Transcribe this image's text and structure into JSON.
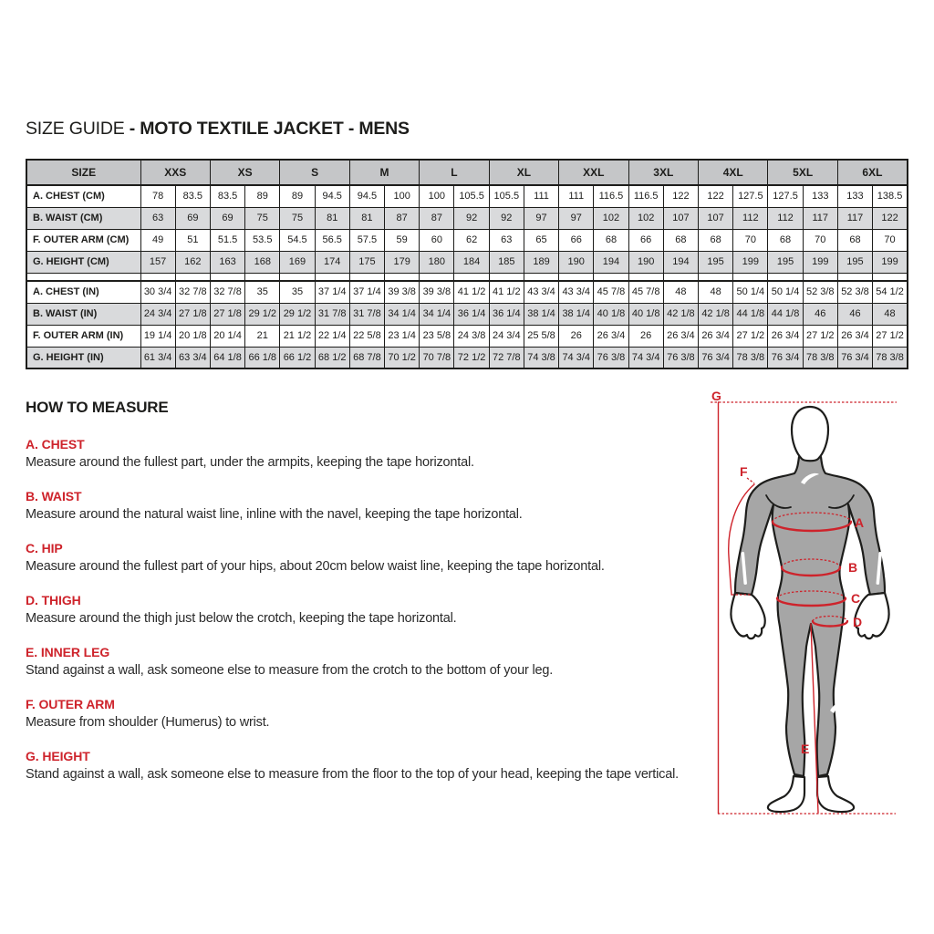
{
  "title": {
    "normal": "SIZE GUIDE ",
    "bold": "- MOTO TEXTILE JACKET - MENS"
  },
  "table": {
    "header_label": "SIZE",
    "sizes": [
      "XXS",
      "XS",
      "S",
      "M",
      "L",
      "XL",
      "XXL",
      "3XL",
      "4XL",
      "5XL",
      "6XL"
    ],
    "cm_rows": [
      {
        "label": "A. CHEST (CM)",
        "values": [
          "78",
          "83.5",
          "83.5",
          "89",
          "89",
          "94.5",
          "94.5",
          "100",
          "100",
          "105.5",
          "105.5",
          "111",
          "111",
          "116.5",
          "116.5",
          "122",
          "122",
          "127.5",
          "127.5",
          "133",
          "133",
          "138.5"
        ]
      },
      {
        "label": "B. WAIST (CM)",
        "values": [
          "63",
          "69",
          "69",
          "75",
          "75",
          "81",
          "81",
          "87",
          "87",
          "92",
          "92",
          "97",
          "97",
          "102",
          "102",
          "107",
          "107",
          "112",
          "112",
          "117",
          "117",
          "122"
        ]
      },
      {
        "label": "F. OUTER ARM (CM)",
        "values": [
          "49",
          "51",
          "51.5",
          "53.5",
          "54.5",
          "56.5",
          "57.5",
          "59",
          "60",
          "62",
          "63",
          "65",
          "66",
          "68",
          "66",
          "68",
          "68",
          "70",
          "68",
          "70",
          "68",
          "70"
        ]
      },
      {
        "label": "G. HEIGHT (CM)",
        "values": [
          "157",
          "162",
          "163",
          "168",
          "169",
          "174",
          "175",
          "179",
          "180",
          "184",
          "185",
          "189",
          "190",
          "194",
          "190",
          "194",
          "195",
          "199",
          "195",
          "199",
          "195",
          "199"
        ]
      }
    ],
    "in_rows": [
      {
        "label": "A. CHEST (IN)",
        "values": [
          "30 3/4",
          "32 7/8",
          "32 7/8",
          "35",
          "35",
          "37 1/4",
          "37 1/4",
          "39 3/8",
          "39 3/8",
          "41 1/2",
          "41 1/2",
          "43 3/4",
          "43 3/4",
          "45 7/8",
          "45 7/8",
          "48",
          "48",
          "50 1/4",
          "50 1/4",
          "52 3/8",
          "52 3/8",
          "54 1/2"
        ]
      },
      {
        "label": "B. WAIST (IN)",
        "values": [
          "24 3/4",
          "27 1/8",
          "27 1/8",
          "29 1/2",
          "29 1/2",
          "31 7/8",
          "31 7/8",
          "34 1/4",
          "34 1/4",
          "36 1/4",
          "36 1/4",
          "38 1/4",
          "38 1/4",
          "40 1/8",
          "40 1/8",
          "42 1/8",
          "42 1/8",
          "44 1/8",
          "44 1/8",
          "46",
          "46",
          "48"
        ]
      },
      {
        "label": "F. OUTER ARM (IN)",
        "values": [
          "19 1/4",
          "20 1/8",
          "20 1/4",
          "21",
          "21 1/2",
          "22 1/4",
          "22 5/8",
          "23 1/4",
          "23 5/8",
          "24 3/8",
          "24 3/4",
          "25 5/8",
          "26",
          "26 3/4",
          "26",
          "26 3/4",
          "26 3/4",
          "27 1/2",
          "26 3/4",
          "27 1/2",
          "26 3/4",
          "27 1/2"
        ]
      },
      {
        "label": "G. HEIGHT (IN)",
        "values": [
          "61 3/4",
          "63 3/4",
          "64 1/8",
          "66 1/8",
          "66 1/2",
          "68 1/2",
          "68 7/8",
          "70 1/2",
          "70 7/8",
          "72 1/2",
          "72 7/8",
          "74 3/8",
          "74 3/4",
          "76 3/8",
          "74 3/4",
          "76 3/8",
          "76 3/4",
          "78 3/8",
          "76 3/4",
          "78 3/8",
          "76 3/4",
          "78 3/8"
        ]
      }
    ]
  },
  "how_to_measure": {
    "heading": "HOW TO MEASURE",
    "items": [
      {
        "label": "A. CHEST",
        "text": "Measure around the fullest part, under the armpits, keeping the tape horizontal."
      },
      {
        "label": "B. WAIST",
        "text": "Measure around the natural waist line, inline with the navel, keeping the tape horizontal."
      },
      {
        "label": "C. HIP",
        "text": "Measure around the fullest part of your hips, about 20cm below waist line, keeping the tape horizontal."
      },
      {
        "label": "D. THIGH",
        "text": "Measure around the thigh just below the crotch, keeping the tape horizontal."
      },
      {
        "label": "E. INNER LEG",
        "text": "Stand against a wall, ask someone else to measure from the crotch to the bottom of your leg."
      },
      {
        "label": "F. OUTER ARM",
        "text": "Measure from shoulder (Humerus) to wrist."
      },
      {
        "label": "G. HEIGHT",
        "text": "Stand against a wall, ask someone else to measure from the floor to the top of your head, keeping the tape vertical."
      }
    ]
  },
  "figure": {
    "labels": [
      "A",
      "B",
      "C",
      "D",
      "E",
      "F",
      "G"
    ]
  },
  "colors": {
    "accent_red": "#ce232b",
    "ink": "#1d1d1b",
    "table_header_gray": "#c5c6c8",
    "table_stripe_gray": "#d9dadc",
    "body_suit_gray": "#a6a6a6"
  }
}
